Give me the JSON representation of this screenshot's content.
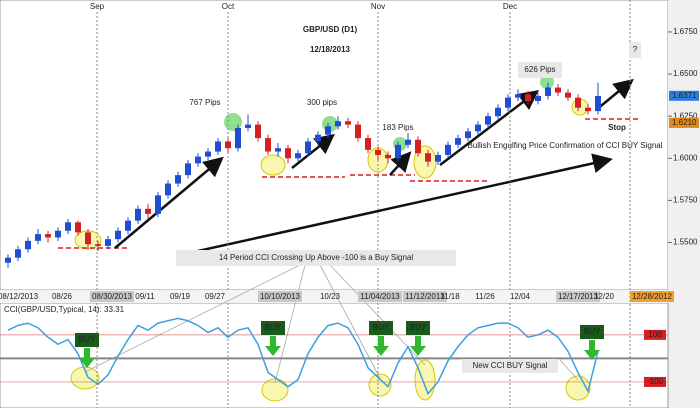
{
  "chart_data": {
    "type": "candlestick",
    "title": "GBP/USD (D1)",
    "subtitle": "12/18/2013",
    "up_color": "#1f4fd0",
    "down_color": "#d42020",
    "candles": [
      [
        1.538,
        1.543,
        1.535,
        1.541
      ],
      [
        1.541,
        1.548,
        1.539,
        1.546
      ],
      [
        1.546,
        1.553,
        1.544,
        1.551
      ],
      [
        1.551,
        1.558,
        1.549,
        1.555
      ],
      [
        1.555,
        1.557,
        1.55,
        1.553
      ],
      [
        1.553,
        1.559,
        1.551,
        1.557
      ],
      [
        1.557,
        1.564,
        1.555,
        1.562
      ],
      [
        1.562,
        1.563,
        1.554,
        1.556
      ],
      [
        1.556,
        1.558,
        1.546,
        1.549
      ],
      [
        1.549,
        1.551,
        1.545,
        1.548
      ],
      [
        1.548,
        1.554,
        1.546,
        1.552
      ],
      [
        1.552,
        1.559,
        1.55,
        1.557
      ],
      [
        1.557,
        1.565,
        1.555,
        1.563
      ],
      [
        1.563,
        1.572,
        1.561,
        1.57
      ],
      [
        1.57,
        1.573,
        1.564,
        1.567
      ],
      [
        1.567,
        1.58,
        1.565,
        1.578
      ],
      [
        1.578,
        1.587,
        1.576,
        1.585
      ],
      [
        1.585,
        1.592,
        1.583,
        1.59
      ],
      [
        1.59,
        1.599,
        1.588,
        1.597
      ],
      [
        1.597,
        1.603,
        1.595,
        1.601
      ],
      [
        1.601,
        1.606,
        1.599,
        1.604
      ],
      [
        1.604,
        1.612,
        1.602,
        1.61
      ],
      [
        1.61,
        1.612,
        1.603,
        1.606
      ],
      [
        1.606,
        1.62,
        1.604,
        1.618
      ],
      [
        1.618,
        1.626,
        1.616,
        1.62
      ],
      [
        1.62,
        1.622,
        1.61,
        1.612
      ],
      [
        1.612,
        1.614,
        1.602,
        1.604
      ],
      [
        1.604,
        1.609,
        1.601,
        1.606
      ],
      [
        1.606,
        1.608,
        1.597,
        1.6
      ],
      [
        1.6,
        1.605,
        1.598,
        1.603
      ],
      [
        1.603,
        1.612,
        1.601,
        1.61
      ],
      [
        1.61,
        1.616,
        1.608,
        1.614
      ],
      [
        1.614,
        1.621,
        1.612,
        1.619
      ],
      [
        1.619,
        1.625,
        1.617,
        1.622
      ],
      [
        1.622,
        1.624,
        1.618,
        1.62
      ],
      [
        1.62,
        1.622,
        1.61,
        1.612
      ],
      [
        1.612,
        1.614,
        1.603,
        1.605
      ],
      [
        1.605,
        1.607,
        1.599,
        1.602
      ],
      [
        1.602,
        1.604,
        1.597,
        1.6
      ],
      [
        1.6,
        1.61,
        1.598,
        1.608
      ],
      [
        1.608,
        1.615,
        1.606,
        1.611
      ],
      [
        1.611,
        1.613,
        1.601,
        1.603
      ],
      [
        1.603,
        1.605,
        1.595,
        1.598
      ],
      [
        1.598,
        1.604,
        1.596,
        1.602
      ],
      [
        1.602,
        1.61,
        1.6,
        1.608
      ],
      [
        1.608,
        1.614,
        1.606,
        1.612
      ],
      [
        1.612,
        1.618,
        1.61,
        1.616
      ],
      [
        1.616,
        1.622,
        1.614,
        1.62
      ],
      [
        1.62,
        1.627,
        1.618,
        1.625
      ],
      [
        1.625,
        1.632,
        1.623,
        1.63
      ],
      [
        1.63,
        1.638,
        1.628,
        1.636
      ],
      [
        1.636,
        1.641,
        1.634,
        1.638
      ],
      [
        1.638,
        1.64,
        1.632,
        1.634
      ],
      [
        1.634,
        1.639,
        1.632,
        1.637
      ],
      [
        1.637,
        1.645,
        1.635,
        1.642
      ],
      [
        1.642,
        1.644,
        1.637,
        1.639
      ],
      [
        1.639,
        1.641,
        1.634,
        1.636
      ],
      [
        1.636,
        1.638,
        1.628,
        1.63
      ],
      [
        1.63,
        1.632,
        1.626,
        1.628
      ],
      [
        1.628,
        1.645,
        1.626,
        1.637
      ]
    ],
    "ylim": [
      1.523,
      1.691
    ],
    "yticks": [
      {
        "value": 1.55,
        "label": "1.5500"
      },
      {
        "value": 1.575,
        "label": "1.5750"
      },
      {
        "value": 1.6,
        "label": "1.6000"
      },
      {
        "value": 1.625,
        "label": "1.6250"
      },
      {
        "value": 1.65,
        "label": "1.6500"
      },
      {
        "value": 1.675,
        "label": "1.6750"
      }
    ],
    "price_labels": [
      {
        "value": 1.6371,
        "label": "1.6371"
      },
      {
        "value": 1.621,
        "label": "1.6210"
      }
    ],
    "x_labels": [
      "08/12/2013",
      "08/26",
      "08/30/2013",
      "09/11",
      "09/19",
      "09/27",
      "10/10/2013",
      "10/23",
      "11/04/2013",
      "11/12/2013",
      "11/18",
      "11/26",
      "12/04",
      "12/17/2013",
      "12/20",
      "12/28/2012"
    ],
    "months": [
      "Sep",
      "Oct",
      "Nov",
      "Dec"
    ],
    "annotations": [
      "767 Pips",
      "300 pips",
      "183 Pips",
      "626 Pips",
      "?",
      "Stop",
      "Bullish Engulfing Price Confirmation of CCI BUY Signal",
      "14 Period CCI Crossing Up Above -100 is a Buy Signal"
    ],
    "indicator": {
      "label": "CCI(GBP/USD,Typical, 14): 33.31",
      "color": "#3aa0e0",
      "values": [
        120,
        140,
        150,
        130,
        90,
        60,
        80,
        20,
        -80,
        -110,
        -70,
        10,
        80,
        140,
        120,
        150,
        160,
        170,
        160,
        140,
        110,
        130,
        90,
        120,
        130,
        60,
        -60,
        -90,
        -120,
        -90,
        20,
        90,
        140,
        150,
        130,
        60,
        -40,
        -80,
        -120,
        -20,
        50,
        -40,
        -150,
        -100,
        -10,
        50,
        100,
        130,
        140,
        150,
        150,
        130,
        90,
        100,
        120,
        90,
        30,
        -60,
        -140,
        30
      ],
      "ylim": [
        -198,
        227
      ],
      "yticks": [
        100,
        -100
      ],
      "signals": [
        "BUY",
        "BUY",
        "BUY",
        "BUY",
        "BUY"
      ],
      "note": "New CCI BUY Signal"
    }
  }
}
